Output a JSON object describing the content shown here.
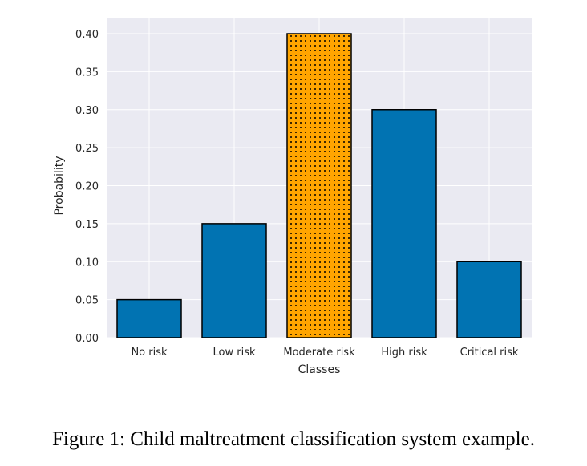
{
  "chart_data": {
    "type": "bar",
    "categories": [
      "No risk",
      "Low risk",
      "Moderate risk",
      "High risk",
      "Critical risk"
    ],
    "values": [
      0.05,
      0.15,
      0.4,
      0.3,
      0.1
    ],
    "highlighted_category": "Moderate risk",
    "xlabel": "Classes",
    "ylabel": "Probability",
    "ylim": [
      0,
      0.4
    ],
    "yticks": [
      "0.00",
      "0.05",
      "0.10",
      "0.15",
      "0.20",
      "0.25",
      "0.30",
      "0.35",
      "0.40"
    ],
    "grid": true,
    "legend": "none",
    "colors": {
      "bar": "#0173b2",
      "highlight": "#ffa500",
      "highlight_dots": "#000000",
      "edge": "#000000",
      "background": "#eaeaf2",
      "grid": "#ffffff"
    }
  },
  "caption": "Figure 1: Child maltreatment classification system example."
}
